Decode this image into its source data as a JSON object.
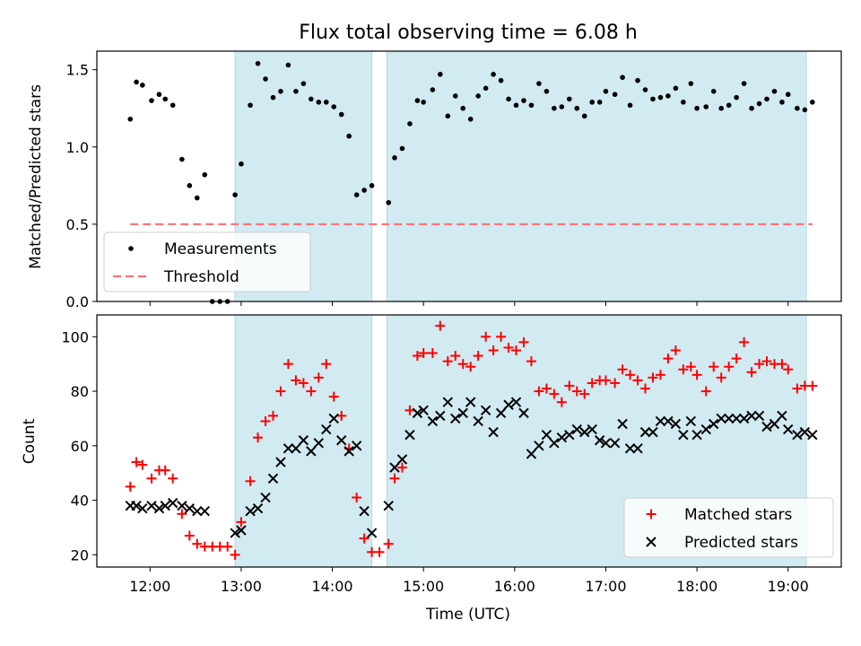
{
  "chart_data": [
    {
      "type": "scatter",
      "title": "Flux total observing time = 6.08 h",
      "xlabel": "",
      "ylabel": "Matched/Predicted stars",
      "ylim": [
        0,
        1.62
      ],
      "xlim": [
        "11:25",
        "19:35"
      ],
      "yticks": [
        0.0,
        0.5,
        1.0,
        1.5
      ],
      "ytick_labels": [
        "0.0",
        "0.5",
        "1.0",
        "1.5"
      ],
      "shaded_intervals": [
        [
          "12:56",
          "14:26"
        ],
        [
          "14:36",
          "19:12"
        ]
      ],
      "legend": "lower-left",
      "series": [
        {
          "name": "Measurements",
          "marker": "dot",
          "color": "#000000",
          "x": [
            "11:47",
            "11:51",
            "11:55",
            "12:01",
            "12:06",
            "12:10",
            "12:15",
            "12:21",
            "12:26",
            "12:31",
            "12:36",
            "12:41",
            "12:46",
            "12:51",
            "12:56",
            "13:00",
            "13:06",
            "13:11",
            "13:16",
            "13:21",
            "13:26",
            "13:31",
            "13:36",
            "13:41",
            "13:46",
            "13:51",
            "13:56",
            "14:01",
            "14:06",
            "14:11",
            "14:16",
            "14:21",
            "14:26",
            "14:37",
            "14:41",
            "14:46",
            "14:51",
            "14:56",
            "15:00",
            "15:06",
            "15:11",
            "15:16",
            "15:21",
            "15:26",
            "15:31",
            "15:36",
            "15:41",
            "15:46",
            "15:51",
            "15:56",
            "16:01",
            "16:06",
            "16:11",
            "16:16",
            "16:21",
            "16:26",
            "16:31",
            "16:36",
            "16:41",
            "16:46",
            "16:51",
            "16:56",
            "17:00",
            "17:06",
            "17:11",
            "17:16",
            "17:21",
            "17:26",
            "17:31",
            "17:36",
            "17:41",
            "17:46",
            "17:51",
            "17:56",
            "18:00",
            "18:06",
            "18:11",
            "18:16",
            "18:21",
            "18:26",
            "18:31",
            "18:36",
            "18:41",
            "18:46",
            "18:51",
            "18:56",
            "19:00",
            "19:06",
            "19:11",
            "19:16"
          ],
          "y": [
            1.18,
            1.42,
            1.4,
            1.3,
            1.34,
            1.31,
            1.27,
            0.92,
            0.75,
            0.67,
            0.82,
            0.0,
            0.0,
            0.0,
            0.69,
            0.89,
            1.27,
            1.54,
            1.44,
            1.32,
            1.36,
            1.53,
            1.36,
            1.41,
            1.31,
            1.29,
            1.29,
            1.26,
            1.21,
            1.07,
            0.69,
            0.72,
            0.75,
            0.64,
            0.93,
            0.99,
            1.15,
            1.3,
            1.29,
            1.37,
            1.47,
            1.2,
            1.33,
            1.25,
            1.18,
            1.33,
            1.38,
            1.47,
            1.43,
            1.31,
            1.27,
            1.3,
            1.27,
            1.41,
            1.36,
            1.25,
            1.26,
            1.31,
            1.25,
            1.2,
            1.29,
            1.29,
            1.36,
            1.34,
            1.45,
            1.27,
            1.43,
            1.37,
            1.31,
            1.32,
            1.33,
            1.38,
            1.29,
            1.41,
            1.25,
            1.26,
            1.36,
            1.25,
            1.27,
            1.32,
            1.41,
            1.25,
            1.28,
            1.31,
            1.36,
            1.29,
            1.34,
            1.25,
            1.24,
            1.29
          ]
        },
        {
          "name": "Threshold",
          "style": "dashed",
          "color": "#ff6b6b",
          "x": [
            "11:47",
            "19:16"
          ],
          "y": [
            0.5,
            0.5
          ]
        }
      ]
    },
    {
      "type": "scatter",
      "title": "",
      "xlabel": "Time (UTC)",
      "ylabel": "Count",
      "ylim": [
        15.5,
        108
      ],
      "xlim": [
        "11:25",
        "19:35"
      ],
      "yticks": [
        20,
        40,
        60,
        80,
        100
      ],
      "ytick_labels": [
        "20",
        "40",
        "60",
        "80",
        "100"
      ],
      "xticks": [
        "12:00",
        "13:00",
        "14:00",
        "15:00",
        "16:00",
        "17:00",
        "18:00",
        "19:00"
      ],
      "shaded_intervals": [
        [
          "12:56",
          "14:26"
        ],
        [
          "14:36",
          "19:12"
        ]
      ],
      "legend": "lower-right",
      "series": [
        {
          "name": "Matched stars",
          "marker": "plus",
          "color": "#ff0000",
          "x": [
            "11:47",
            "11:51",
            "11:55",
            "12:01",
            "12:06",
            "12:10",
            "12:15",
            "12:21",
            "12:26",
            "12:31",
            "12:36",
            "12:41",
            "12:46",
            "12:51",
            "12:56",
            "13:00",
            "13:06",
            "13:11",
            "13:16",
            "13:21",
            "13:26",
            "13:31",
            "13:36",
            "13:41",
            "13:46",
            "13:51",
            "13:56",
            "14:01",
            "14:06",
            "14:11",
            "14:16",
            "14:21",
            "14:26",
            "14:31",
            "14:37",
            "14:41",
            "14:46",
            "14:51",
            "14:56",
            "15:00",
            "15:06",
            "15:11",
            "15:16",
            "15:21",
            "15:26",
            "15:31",
            "15:36",
            "15:41",
            "15:46",
            "15:51",
            "15:56",
            "16:01",
            "16:06",
            "16:11",
            "16:16",
            "16:21",
            "16:26",
            "16:31",
            "16:36",
            "16:41",
            "16:46",
            "16:51",
            "16:56",
            "17:00",
            "17:06",
            "17:11",
            "17:16",
            "17:21",
            "17:26",
            "17:31",
            "17:36",
            "17:41",
            "17:46",
            "17:51",
            "17:56",
            "18:00",
            "18:06",
            "18:11",
            "18:16",
            "18:21",
            "18:26",
            "18:31",
            "18:36",
            "18:41",
            "18:46",
            "18:51",
            "18:56",
            "19:00",
            "19:06",
            "19:11",
            "19:16"
          ],
          "y": [
            45,
            54,
            53,
            48,
            51,
            51,
            48,
            35,
            27,
            24,
            23,
            23,
            23,
            23,
            20,
            32,
            47,
            63,
            69,
            71,
            80,
            90,
            84,
            83,
            80,
            85,
            90,
            78,
            71,
            59,
            41,
            26,
            21,
            21,
            24,
            48,
            52,
            73,
            93,
            94,
            94,
            104,
            91,
            93,
            90,
            89,
            93,
            100,
            95,
            100,
            96,
            95,
            98,
            91,
            80,
            81,
            79,
            76,
            82,
            80,
            79,
            83,
            84,
            84,
            83,
            88,
            86,
            84,
            81,
            85,
            86,
            92,
            95,
            88,
            89,
            86,
            80,
            89,
            85,
            89,
            92,
            98,
            87,
            90,
            91,
            90,
            90,
            88,
            81,
            82,
            82
          ]
        },
        {
          "name": "Predicted stars",
          "marker": "x",
          "color": "#000000",
          "x": [
            "11:47",
            "11:51",
            "11:55",
            "12:01",
            "12:06",
            "12:10",
            "12:15",
            "12:21",
            "12:26",
            "12:31",
            "12:36",
            "12:56",
            "13:00",
            "13:06",
            "13:11",
            "13:16",
            "13:21",
            "13:26",
            "13:31",
            "13:36",
            "13:41",
            "13:46",
            "13:51",
            "13:56",
            "14:01",
            "14:06",
            "14:11",
            "14:16",
            "14:21",
            "14:26",
            "14:37",
            "14:41",
            "14:46",
            "14:51",
            "14:56",
            "15:00",
            "15:06",
            "15:11",
            "15:16",
            "15:21",
            "15:26",
            "15:31",
            "15:36",
            "15:41",
            "15:46",
            "15:51",
            "15:56",
            "16:01",
            "16:06",
            "16:11",
            "16:16",
            "16:21",
            "16:26",
            "16:31",
            "16:36",
            "16:41",
            "16:46",
            "16:51",
            "16:56",
            "17:00",
            "17:06",
            "17:11",
            "17:16",
            "17:21",
            "17:26",
            "17:31",
            "17:36",
            "17:41",
            "17:46",
            "17:51",
            "17:56",
            "18:00",
            "18:06",
            "18:11",
            "18:16",
            "18:21",
            "18:26",
            "18:31",
            "18:36",
            "18:41",
            "18:46",
            "18:51",
            "18:56",
            "19:00",
            "19:06",
            "19:11",
            "19:16"
          ],
          "y": [
            38,
            38,
            37,
            38,
            37,
            38,
            39,
            38,
            37,
            36,
            36,
            28,
            29,
            36,
            37,
            41,
            48,
            54,
            59,
            59,
            62,
            58,
            61,
            66,
            70,
            62,
            58,
            60,
            36,
            28,
            38,
            52,
            55,
            64,
            72,
            73,
            69,
            71,
            76,
            70,
            72,
            76,
            69,
            73,
            65,
            72,
            75,
            76,
            72,
            57,
            60,
            64,
            61,
            63,
            64,
            66,
            65,
            66,
            62,
            61,
            61,
            68,
            59,
            59,
            65,
            65,
            69,
            69,
            68,
            64,
            69,
            64,
            66,
            68,
            70,
            70,
            70,
            70,
            71,
            71,
            67,
            68,
            71,
            66,
            64,
            65,
            64
          ]
        }
      ]
    }
  ]
}
